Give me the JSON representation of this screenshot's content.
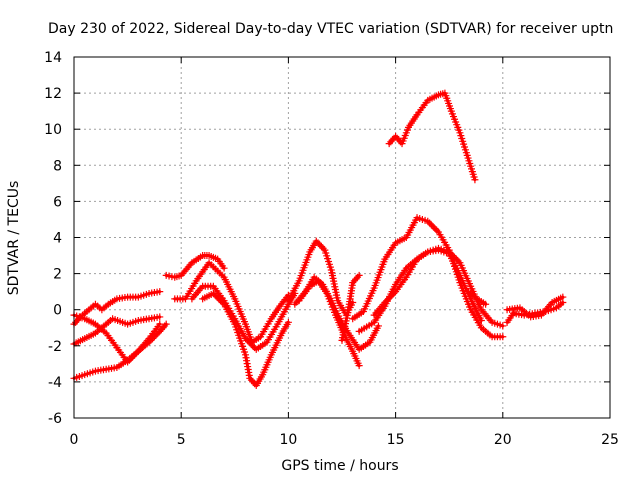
{
  "chart_data": {
    "type": "scatter",
    "title": "Day 230 of 2022, Sidereal Day-to-day VTEC variation (SDTVAR) for receiver uptn",
    "xlabel": "GPS time / hours",
    "ylabel": "SDTVAR / TECUs",
    "xlim": [
      0,
      25
    ],
    "ylim": [
      -6,
      14
    ],
    "xticks": [
      0,
      5,
      10,
      15,
      20,
      25
    ],
    "yticks": [
      -6,
      -4,
      -2,
      0,
      2,
      4,
      6,
      8,
      10,
      12,
      14
    ],
    "grid": true,
    "marker": "plus",
    "color": "#ff0000",
    "series": [
      {
        "name": "s1",
        "x": [
          0,
          0.5,
          1,
          1.5,
          2,
          2.5,
          3,
          3.5,
          4
        ],
        "y": [
          -0.3,
          -0.5,
          -0.8,
          -1.3,
          -2.1,
          -2.9,
          -2.3,
          -1.6,
          -0.8
        ]
      },
      {
        "name": "s2",
        "x": [
          0,
          0.5,
          1,
          1.3,
          1.8,
          2.5,
          3,
          3.5,
          4
        ],
        "y": [
          -1.9,
          -1.6,
          -1.3,
          -1.0,
          -0.5,
          -0.8,
          -0.6,
          -0.5,
          -0.4
        ]
      },
      {
        "name": "s3",
        "x": [
          0,
          0.3,
          0.6,
          1,
          1.3,
          1.6,
          2,
          2.5,
          3,
          3.5,
          4
        ],
        "y": [
          -0.8,
          -0.4,
          -0.1,
          0.3,
          0.0,
          0.3,
          0.6,
          0.7,
          0.7,
          0.9,
          1.0
        ]
      },
      {
        "name": "s4",
        "x": [
          0,
          0.5,
          1,
          1.5,
          2,
          2.5,
          3,
          3.5,
          4,
          4.3
        ],
        "y": [
          -3.8,
          -3.6,
          -3.4,
          -3.3,
          -3.2,
          -2.8,
          -2.3,
          -1.8,
          -1.2,
          -0.8
        ]
      },
      {
        "name": "s5",
        "x": [
          4.3,
          4.7,
          5,
          5.5,
          6,
          6.3,
          6.7,
          7
        ],
        "y": [
          1.9,
          1.8,
          1.9,
          2.6,
          3.0,
          3.0,
          2.8,
          2.3
        ]
      },
      {
        "name": "s6",
        "x": [
          4.7,
          5.2,
          5.7,
          6.3,
          7,
          7.5,
          8,
          8.3,
          8.7,
          9.2,
          9.6,
          10
        ],
        "y": [
          0.6,
          0.6,
          1.6,
          2.6,
          1.8,
          0.6,
          -0.8,
          -1.8,
          -1.5,
          -0.5,
          0.2,
          0.8
        ]
      },
      {
        "name": "s7",
        "x": [
          5.5,
          6,
          6.5,
          7,
          7.5,
          8,
          8.5,
          9,
          9.5,
          10,
          10.3
        ],
        "y": [
          0.6,
          1.3,
          1.3,
          0.5,
          -0.5,
          -1.6,
          -2.2,
          -1.8,
          -0.8,
          0.3,
          0.9
        ]
      },
      {
        "name": "s8",
        "x": [
          6,
          6.5,
          7,
          7.5,
          8,
          8.2,
          8.5,
          8.8,
          9.2,
          9.7,
          10
        ],
        "y": [
          0.6,
          0.9,
          0.3,
          -0.8,
          -2.5,
          -3.8,
          -4.2,
          -3.6,
          -2.5,
          -1.3,
          -0.7
        ]
      },
      {
        "name": "s9",
        "x": [
          10,
          10.5,
          11,
          11.3,
          11.7,
          12,
          12.3,
          12.7,
          13
        ],
        "y": [
          0.5,
          1.6,
          3.2,
          3.8,
          3.3,
          2.2,
          0.5,
          -0.3,
          0.4
        ]
      },
      {
        "name": "s10",
        "x": [
          10.3,
          10.8,
          11.2,
          11.6,
          12,
          12.4,
          12.8,
          13.3,
          13.8,
          14.2
        ],
        "y": [
          0.3,
          1.0,
          1.8,
          1.4,
          0.5,
          -0.5,
          -1.3,
          -2.2,
          -1.8,
          -0.9
        ]
      },
      {
        "name": "s11",
        "x": [
          10.5,
          11,
          11.4,
          11.8,
          12.2,
          12.6,
          13,
          13.3
        ],
        "y": [
          0.5,
          1.3,
          1.6,
          0.9,
          -0.3,
          -1.4,
          -2.3,
          -3.1
        ]
      },
      {
        "name": "s12",
        "x": [
          12.5,
          12.8,
          13,
          13.3
        ],
        "y": [
          -1.7,
          0.0,
          1.5,
          1.9
        ]
      },
      {
        "name": "s13",
        "x": [
          13,
          13.5,
          14,
          14.5,
          15,
          15.5,
          16,
          16.5,
          17,
          17.5,
          18,
          18.5,
          19,
          19.5,
          20
        ],
        "y": [
          -0.5,
          -0.1,
          1.2,
          2.8,
          3.7,
          4.0,
          5.1,
          4.9,
          4.3,
          3.3,
          1.5,
          0.0,
          -1.0,
          -1.5,
          -1.5
        ]
      },
      {
        "name": "s14",
        "x": [
          13.3,
          14,
          14.5,
          15,
          15.5,
          16,
          16.5,
          17,
          17.5,
          18,
          18.5,
          19
        ],
        "y": [
          -1.2,
          -0.7,
          0.2,
          1.4,
          2.3,
          2.8,
          3.2,
          3.3,
          3.1,
          1.9,
          0.6,
          -0.6
        ]
      },
      {
        "name": "s15",
        "x": [
          14,
          14.5,
          15,
          15.5,
          16,
          16.5,
          17,
          17.5,
          18,
          18.5,
          19,
          19.5,
          20
        ],
        "y": [
          -0.3,
          0.4,
          1.0,
          1.8,
          2.8,
          3.2,
          3.4,
          3.2,
          2.6,
          1.3,
          0.0,
          -0.7,
          -0.9
        ]
      },
      {
        "name": "s16",
        "x": [
          18.4,
          18.8,
          19.2
        ],
        "y": [
          1.0,
          0.6,
          0.3
        ]
      },
      {
        "name": "s17",
        "x": [
          20.2,
          20.5,
          21,
          21.5,
          22,
          22.5,
          22.8
        ],
        "y": [
          -0.7,
          -0.2,
          -0.3,
          -0.2,
          -0.1,
          0.1,
          0.4
        ]
      },
      {
        "name": "s18",
        "x": [
          20.2,
          20.8,
          21.3,
          21.8,
          22.3,
          22.8
        ],
        "y": [
          0.0,
          0.1,
          -0.4,
          -0.3,
          0.4,
          0.7
        ]
      },
      {
        "name": "s19",
        "x": [
          14.7,
          15,
          15.3,
          15.6,
          16,
          16.5,
          17,
          17.3,
          17.6,
          18,
          18.3,
          18.7
        ],
        "y": [
          9.2,
          9.6,
          9.2,
          10.1,
          10.8,
          11.6,
          11.9,
          12.0,
          11.0,
          9.8,
          8.7,
          7.2
        ]
      }
    ]
  }
}
